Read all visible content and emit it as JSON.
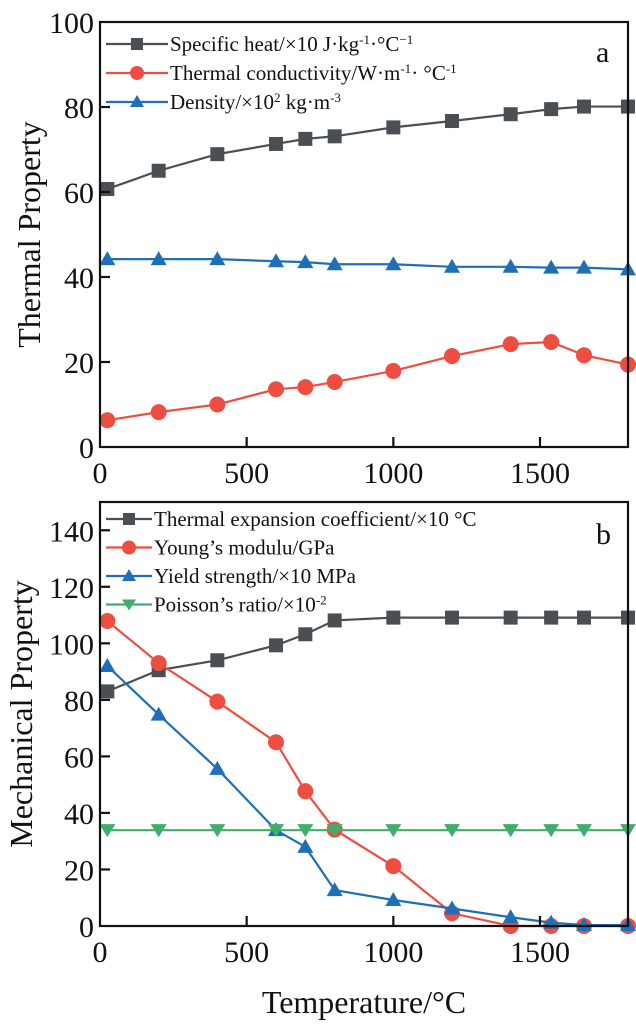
{
  "chart_data": [
    {
      "type": "line",
      "panel_label": "a",
      "title": "",
      "xlabel": "",
      "ylabel": "Thermal Property",
      "xlim": [
        0,
        1800
      ],
      "ylim": [
        0,
        100
      ],
      "xticks": [
        0,
        500,
        1000,
        1500
      ],
      "xtick_labels": [
        "0",
        "500",
        "1000",
        "1500"
      ],
      "yticks": [
        0,
        20,
        40,
        60,
        80,
        100
      ],
      "ytick_labels": [
        "0",
        "20",
        "40",
        "60",
        "80",
        "100"
      ],
      "grid": false,
      "legend_position": "top-left",
      "x": [
        25,
        200,
        400,
        600,
        700,
        800,
        1000,
        1200,
        1400,
        1538,
        1650,
        1800
      ],
      "series": [
        {
          "name": "Specific heat/×10 J·kg⁻¹·°C⁻¹",
          "legend_main": "Specific heat/×10 J·kg",
          "legend_parts": [
            [
              "Specific heat/×10 J·kg",
              ""
            ],
            [
              "-1",
              "sup"
            ],
            [
              "·°C",
              ""
            ],
            [
              "−1",
              "sup"
            ]
          ],
          "marker": "square",
          "color": "#4a4f54",
          "values": [
            60.7,
            65.0,
            68.9,
            71.3,
            72.5,
            73.1,
            75.2,
            76.7,
            78.3,
            79.5,
            80.1,
            80.1
          ]
        },
        {
          "name": "Thermal conductivity/W·m⁻¹·°C⁻¹",
          "legend_parts": [
            [
              "Thermal conductivity/W·m",
              ""
            ],
            [
              "-1",
              "sup"
            ],
            [
              "· °C",
              ""
            ],
            [
              "-1",
              "sup"
            ]
          ],
          "marker": "circle",
          "color": "#ee4e42",
          "values": [
            6.3,
            8.2,
            10.0,
            13.6,
            14.1,
            15.3,
            17.9,
            21.4,
            24.2,
            24.7,
            21.6,
            19.4
          ]
        },
        {
          "name": "Density/×10² kg·m⁻³",
          "legend_parts": [
            [
              "Density/×10",
              ""
            ],
            [
              "2",
              "sup"
            ],
            [
              " kg·m",
              ""
            ],
            [
              "-3",
              "sup"
            ]
          ],
          "marker": "triangle-up",
          "color": "#1f6fb8",
          "values": [
            44.2,
            44.2,
            44.2,
            43.7,
            43.5,
            43.0,
            43.0,
            42.4,
            42.4,
            42.2,
            42.2,
            41.8
          ]
        }
      ]
    },
    {
      "type": "line",
      "panel_label": "b",
      "title": "",
      "xlabel": "Temperature/°C",
      "ylabel": "Mechanical Property",
      "xlim": [
        0,
        1800
      ],
      "ylim": [
        0,
        150
      ],
      "xticks": [
        0,
        500,
        1000,
        1500
      ],
      "xtick_labels": [
        "0",
        "500",
        "1000",
        "1500"
      ],
      "yticks": [
        0,
        20,
        40,
        60,
        80,
        100,
        120,
        140
      ],
      "ytick_labels": [
        "0",
        "20",
        "40",
        "60",
        "80",
        "100",
        "120",
        "140"
      ],
      "grid": false,
      "legend_position": "top-left",
      "x": [
        25,
        200,
        400,
        600,
        700,
        800,
        1000,
        1200,
        1400,
        1538,
        1650,
        1800
      ],
      "series": [
        {
          "name": "Thermal expansion coefficient/×10 °C",
          "legend_parts": [
            [
              "Thermal expansion coefficient/×10 °C",
              ""
            ]
          ],
          "marker": "square",
          "color": "#4a4f54",
          "values": [
            83.0,
            90.5,
            94.0,
            99.3,
            103.2,
            108.1,
            109.1,
            109.1,
            109.1,
            109.1,
            109.1,
            109.1
          ]
        },
        {
          "name": "Young’s modulu/GPa",
          "legend_parts": [
            [
              "Young’s modulu/GPa",
              ""
            ]
          ],
          "marker": "circle",
          "color": "#ee4e42",
          "values": [
            107.9,
            93.0,
            79.4,
            65.0,
            47.7,
            34.1,
            21.2,
            4.5,
            0,
            0,
            0,
            0
          ]
        },
        {
          "name": "Yield strength/×10 MPa",
          "legend_parts": [
            [
              "Yield strength/×10 MPa",
              ""
            ]
          ],
          "marker": "triangle-up",
          "color": "#1f6fb8",
          "values": [
            92.0,
            74.8,
            55.6,
            33.9,
            28.0,
            12.7,
            9.2,
            6.2,
            3.1,
            1.2,
            0.3,
            0.3
          ]
        },
        {
          "name": "Poisson’s ratio/×10⁻²",
          "legend_parts": [
            [
              "Poisson’s ratio/×10",
              ""
            ],
            [
              "-2",
              "sup"
            ]
          ],
          "marker": "triangle-down",
          "color": "#3fae6a",
          "values": [
            33.9,
            33.9,
            33.9,
            33.9,
            33.9,
            33.9,
            33.9,
            33.9,
            33.9,
            33.9,
            33.9,
            33.9
          ]
        }
      ]
    }
  ]
}
